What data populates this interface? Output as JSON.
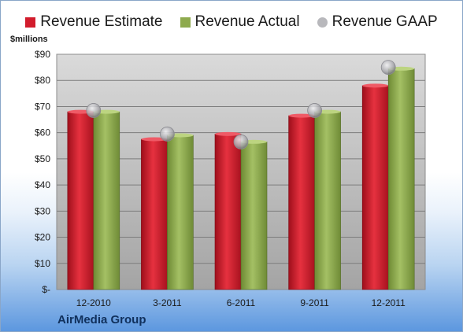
{
  "colors": {
    "estimate": "#d21c2c",
    "actual": "#8eaa4e",
    "gaap": "#b8b8bc",
    "plot_top": "#dadada",
    "plot_bottom": "#a4a4a4"
  },
  "y_unit_label": "$millions",
  "company": "AirMedia Group",
  "chart_data": {
    "type": "bar",
    "categories": [
      "12-2010",
      "3-2011",
      "6-2011",
      "9-2011",
      "12-2011"
    ],
    "series": [
      {
        "name": "Revenue Estimate",
        "kind": "bar",
        "values": [
          68,
          57.5,
          59.5,
          66.5,
          78
        ]
      },
      {
        "name": "Revenue Actual",
        "kind": "bar",
        "values": [
          68,
          59,
          56.5,
          68,
          84.5
        ]
      },
      {
        "name": "Revenue GAAP",
        "kind": "marker",
        "values": [
          68.5,
          59.5,
          56.5,
          68.5,
          85
        ]
      }
    ],
    "ylim": [
      0,
      90
    ],
    "yticks": [
      "$-",
      "$10",
      "$20",
      "$30",
      "$40",
      "$50",
      "$60",
      "$70",
      "$80",
      "$90"
    ],
    "ytick_values": [
      0,
      10,
      20,
      30,
      40,
      50,
      60,
      70,
      80,
      90
    ],
    "grid": true,
    "legend_position": "top"
  }
}
